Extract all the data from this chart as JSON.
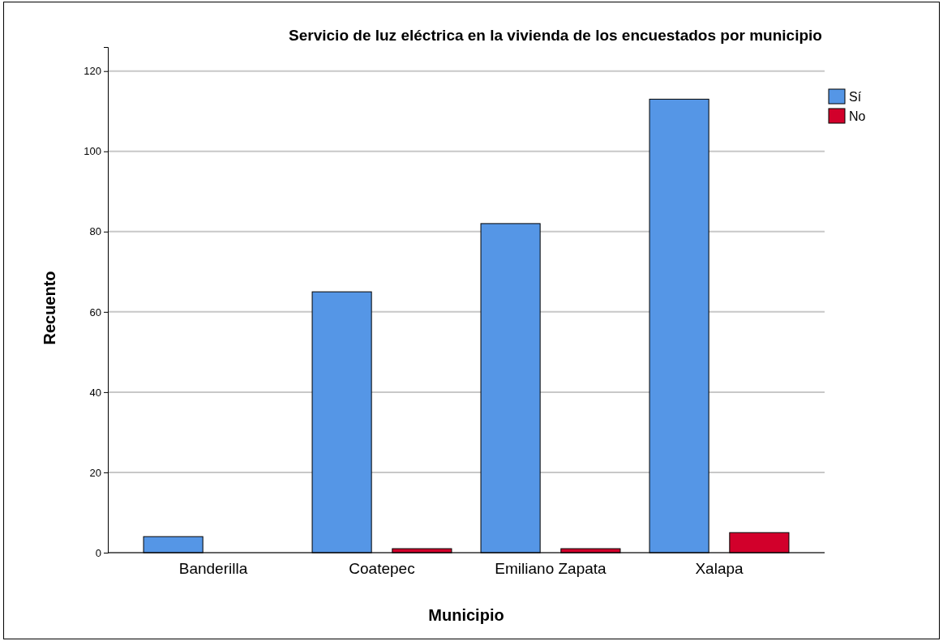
{
  "chart_data": {
    "type": "bar",
    "title": "Servicio de luz eléctrica en la vivienda de los encuestados por municipio",
    "xlabel": "Municipio",
    "ylabel": "Recuento",
    "categories": [
      "Banderilla",
      "Coatepec",
      "Emiliano Zapata",
      "Xalapa"
    ],
    "series": [
      {
        "name": "Sí",
        "color": "#5596e6",
        "values": [
          4,
          65,
          82,
          113
        ]
      },
      {
        "name": "No",
        "color": "#d2002b",
        "values": [
          null,
          1,
          1,
          5
        ]
      }
    ],
    "ylim": [
      0,
      126
    ],
    "yticks": [
      0,
      20,
      40,
      60,
      80,
      100,
      120
    ],
    "grid": "y",
    "legend": "top right"
  }
}
